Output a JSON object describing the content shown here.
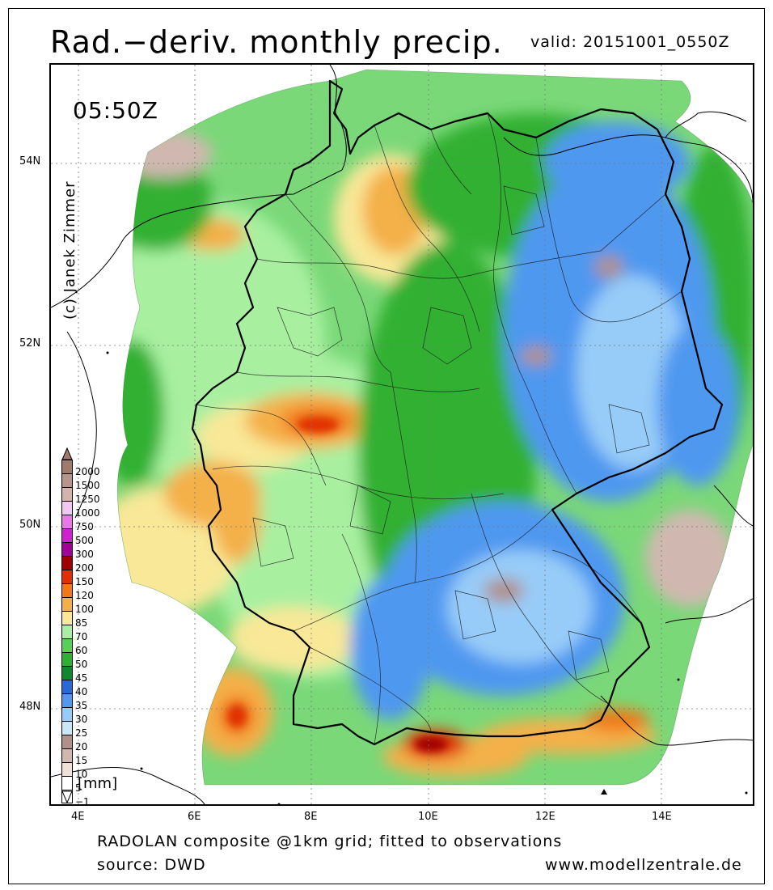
{
  "header": {
    "title": "Rad.−deriv. monthly precip.",
    "valid": "valid: 20151001_0550Z"
  },
  "map": {
    "time_label": "05:50Z",
    "credit": "(c) Janek Zimmer",
    "lat_ticks": [
      {
        "label": "54N",
        "value": 54
      },
      {
        "label": "52N",
        "value": 52
      },
      {
        "label": "50N",
        "value": 50
      },
      {
        "label": "48N",
        "value": 48
      }
    ],
    "lon_ticks": [
      {
        "label": "4E",
        "value": 4
      },
      {
        "label": "6E",
        "value": 6
      },
      {
        "label": "8E",
        "value": 8
      },
      {
        "label": "10E",
        "value": 10
      },
      {
        "label": "12E",
        "value": 12
      },
      {
        "label": "14E",
        "value": 14
      }
    ]
  },
  "legend": {
    "unit": "[mm]",
    "bins": [
      {
        "label": "2000",
        "color": "#a07a6a"
      },
      {
        "label": "1500",
        "color": "#b8958a"
      },
      {
        "label": "1250",
        "color": "#d2b4ab"
      },
      {
        "label": "1000",
        "color": "#f2c8f2"
      },
      {
        "label": "750",
        "color": "#e878e8"
      },
      {
        "label": "500",
        "color": "#d020d0"
      },
      {
        "label": "300",
        "color": "#a00098"
      },
      {
        "label": "200",
        "color": "#a00000"
      },
      {
        "label": "150",
        "color": "#e03000"
      },
      {
        "label": "120",
        "color": "#f07818"
      },
      {
        "label": "100",
        "color": "#f4b048"
      },
      {
        "label": "85",
        "color": "#f8e898"
      },
      {
        "label": "70",
        "color": "#a8f0a0"
      },
      {
        "label": "60",
        "color": "#58d058"
      },
      {
        "label": "50",
        "color": "#30b030"
      },
      {
        "label": "45",
        "color": "#108830"
      },
      {
        "label": "40",
        "color": "#2868d8"
      },
      {
        "label": "35",
        "color": "#5098f0"
      },
      {
        "label": "30",
        "color": "#98ccf8"
      },
      {
        "label": "25",
        "color": "#c8e8f8"
      },
      {
        "label": "20",
        "color": "#b09088"
      },
      {
        "label": "15",
        "color": "#d0b8b0"
      },
      {
        "label": "10",
        "color": "#f0e0d8"
      },
      {
        "label": "5",
        "color": "#ffffff"
      },
      {
        "label": "−1",
        "color": "#ffffff"
      }
    ]
  },
  "footer": {
    "line1": "RADOLAN composite @1km grid; fitted to observations",
    "line2": "source: DWD",
    "site": "www.modellzentrale.de"
  }
}
